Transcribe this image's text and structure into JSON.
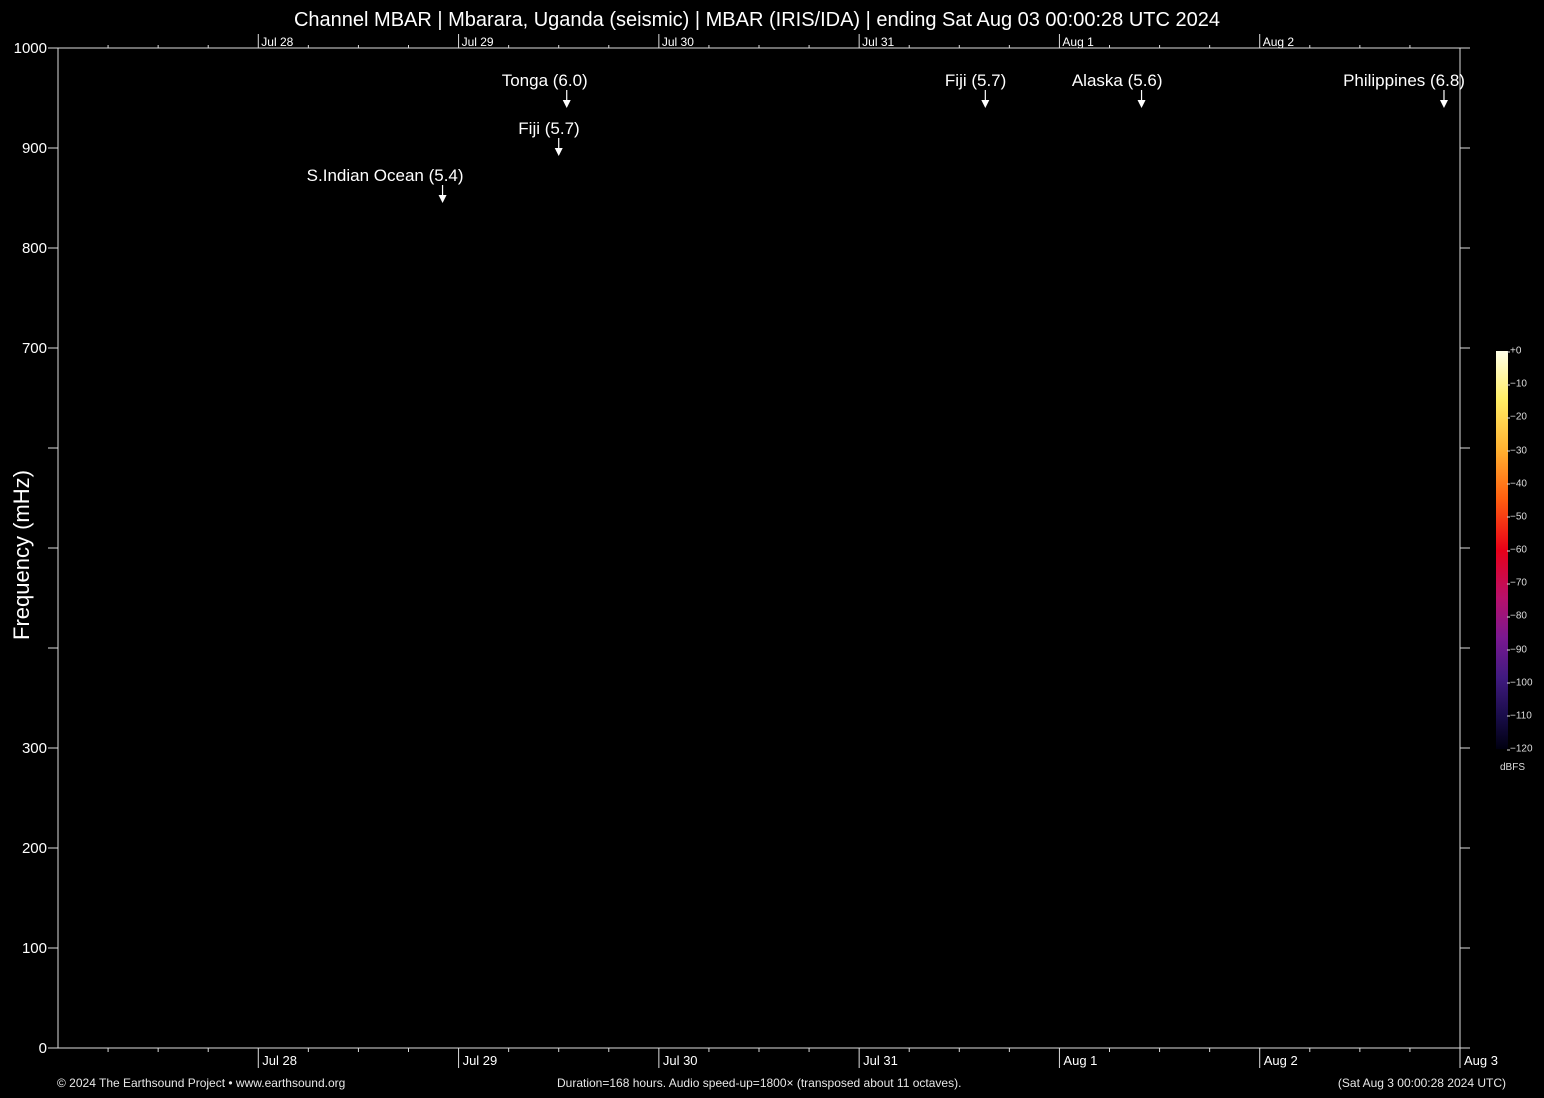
{
  "title": "Channel MBAR | Mbarara, Uganda (seismic) | MBAR (IRIS/IDA) | ending Sat Aug 03 00:00:28 UTC 2024",
  "footer": {
    "left": "© 2024 The Earthsound Project • www.earthsound.org",
    "center": "Duration=168 hours. Audio speed-up=1800× (transposed about 11 octaves).",
    "right": "(Sat Aug  3 00:00:28 2024 UTC)"
  },
  "colorbar": {
    "unit": "dBFS",
    "ticks": [
      "+0",
      "−10",
      "−20",
      "−30",
      "−40",
      "−50",
      "−60",
      "−70",
      "−80",
      "−90",
      "−100",
      "−110",
      "−120"
    ]
  },
  "chart_data": {
    "type": "heatmap",
    "title": "Channel MBAR | Mbarara, Uganda (seismic) | MBAR (IRIS/IDA) | ending Sat Aug 03 00:00:28 UTC 2024",
    "xlabel": "",
    "ylabel": "Frequency (mHz)",
    "x_tick_labels_bottom": [
      "Jul 28",
      "Jul 29",
      "Jul 30",
      "Jul 31",
      "Aug  1",
      "Aug  2",
      "Aug  3"
    ],
    "x_tick_labels_top": [
      "Jul 28",
      "Jul 29",
      "Jul 30",
      "Jul 31",
      "Aug  1",
      "Aug  2"
    ],
    "x_tick_days": [
      1,
      2,
      3,
      4,
      5,
      6,
      7
    ],
    "xlim_days": [
      0,
      7
    ],
    "y_tick_labels": [
      "1000",
      "900",
      "800",
      "700",
      "",
      "",
      "",
      "300",
      "200",
      "100",
      "0"
    ],
    "y_tick_values": [
      1000,
      900,
      800,
      700,
      600,
      500,
      400,
      300,
      200,
      100,
      0
    ],
    "ylim": [
      0,
      1000
    ],
    "grid": false,
    "events": [
      {
        "label": "S.Indian Ocean (5.4)",
        "x_day": 1.92,
        "y": 845,
        "row": 3
      },
      {
        "label": "Tonga (6.0)",
        "x_day": 2.54,
        "y": 940,
        "row": 1
      },
      {
        "label": "Fiji (5.7)",
        "x_day": 2.5,
        "y": 892,
        "row": 2
      },
      {
        "label": "Fiji (5.7)",
        "x_day": 4.63,
        "y": 940,
        "row": 1
      },
      {
        "label": "Alaska (5.6)",
        "x_day": 5.41,
        "y": 940,
        "row": 1
      },
      {
        "label": "Philippines (6.8)",
        "x_day": 6.92,
        "y": 940,
        "row": 1
      }
    ]
  }
}
